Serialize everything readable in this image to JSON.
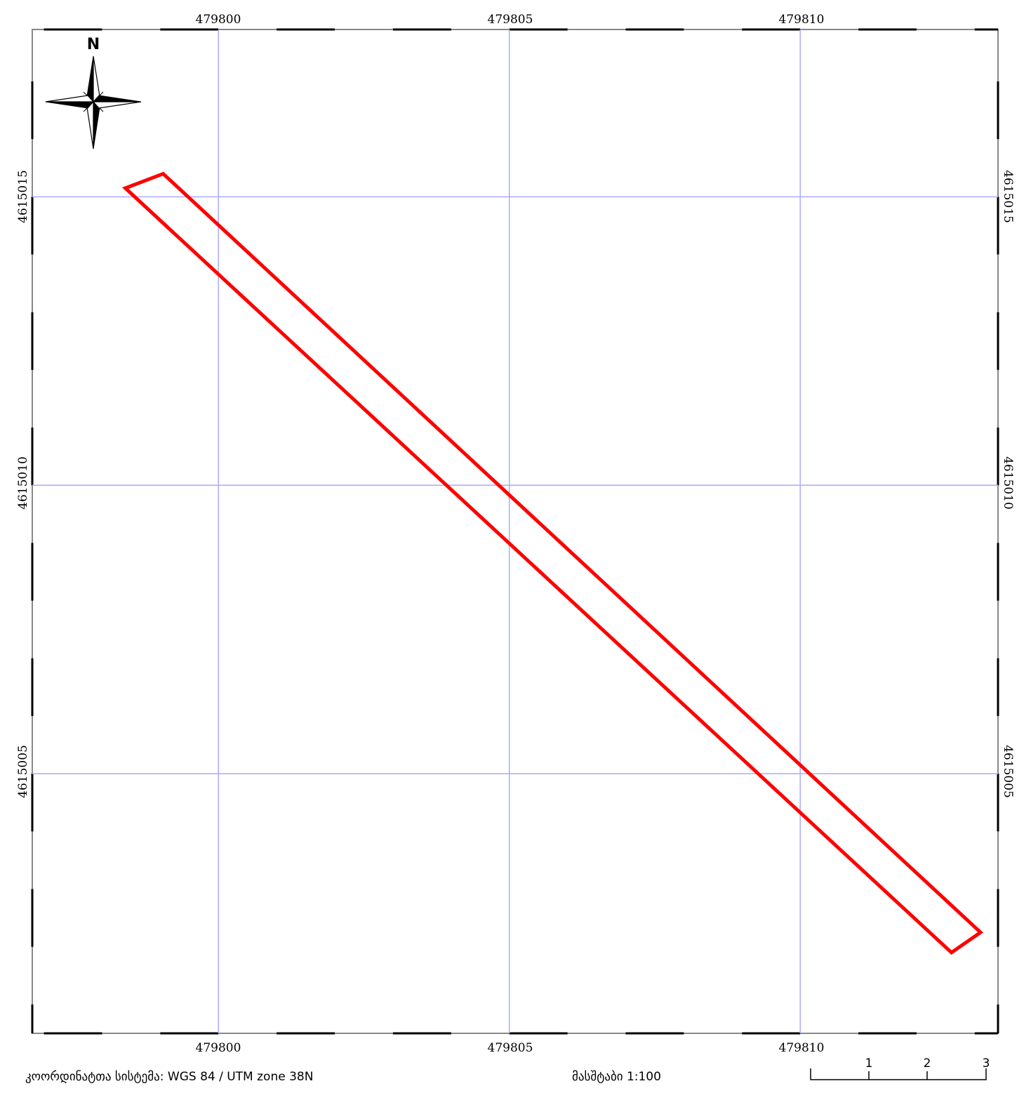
{
  "map": {
    "grid_color": "#aaaaff",
    "parcel_color": "#ff0000",
    "frame_color": "#000000",
    "frame_tick_color": "#888888",
    "extent": {
      "easting_min": 479796.8,
      "easting_max": 479813.4,
      "northing_min": 4615000.5,
      "northing_max": 4615017.9
    },
    "easting_ticks": [
      "479800",
      "479805",
      "479810"
    ],
    "northing_ticks": [
      "4615015",
      "4615010",
      "4615005"
    ],
    "parcel_vertices": [
      [
        479798.4,
        4615015.15
      ],
      [
        479799.05,
        4615015.4
      ],
      [
        479813.1,
        4615002.25
      ],
      [
        479812.6,
        4615001.9
      ]
    ],
    "north_arrow": {
      "label": "N",
      "icon": "compass-rose-icon"
    }
  },
  "footer": {
    "crs_label": "კოორდინატთა სისტემა: WGS 84 / UTM zone 38N",
    "scale_label": "მასშტაბი 1:100",
    "scalebar_ticks": [
      "1",
      "2",
      "3"
    ]
  }
}
